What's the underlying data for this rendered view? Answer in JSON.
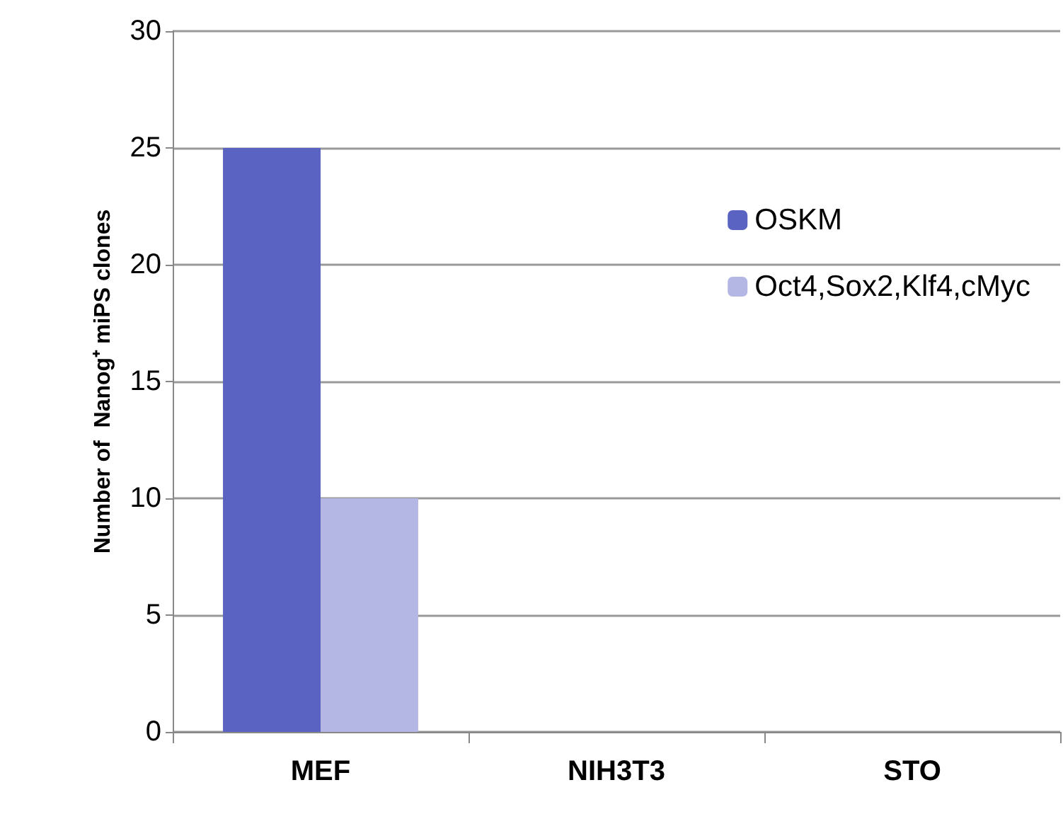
{
  "chart_data": {
    "type": "bar",
    "ylabel": "Number of  Nanog⁺ miPS clones",
    "categories": [
      "MEF",
      "NIH3T3",
      "STO"
    ],
    "series": [
      {
        "name": "OSKM",
        "color": "#5a63c2",
        "values": [
          25,
          0,
          0
        ]
      },
      {
        "name": "Oct4,Sox2,Klf4,cMyc",
        "color": "#b4b6e4",
        "values": [
          10,
          0,
          0
        ]
      }
    ],
    "ylim": [
      0,
      30
    ],
    "yticks": [
      0,
      5,
      10,
      15,
      20,
      25,
      30
    ],
    "grid": "y",
    "legend": "top right"
  }
}
